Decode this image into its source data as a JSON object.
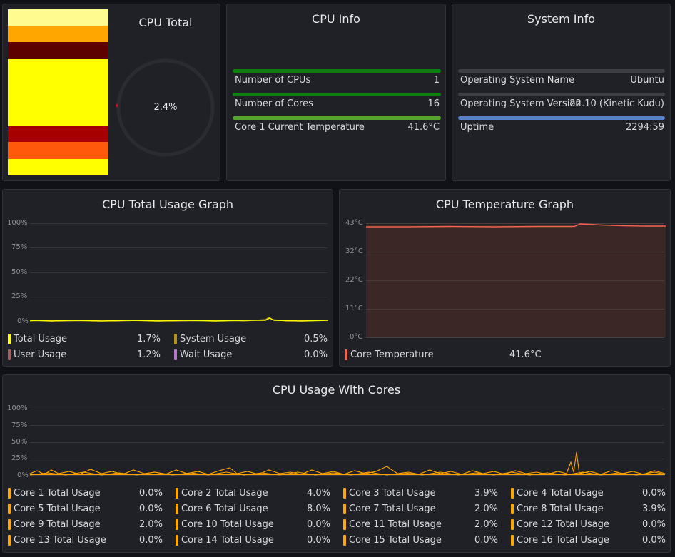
{
  "cpu_total": {
    "title": "CPU Total",
    "value": "2.4%",
    "stack_colors": [
      "#fffb8f",
      "#ffa600",
      "#5c0000",
      "#ffff00",
      "#a70000",
      "#ff5a0c",
      "#ffff00"
    ]
  },
  "cpu_info": {
    "title": "CPU Info",
    "rows": [
      {
        "label": "Number of CPUs",
        "value": "1",
        "color": "#0e7f0e",
        "fill": 1.0
      },
      {
        "label": "Number of Cores",
        "value": "16",
        "color": "#0e7f0e",
        "fill": 1.0
      },
      {
        "label": "Core 1 Current Temperature",
        "value": "41.6°C",
        "color": "#56a32e",
        "fill": 1.0
      }
    ]
  },
  "system_info": {
    "title": "System Info",
    "rows": [
      {
        "label": "Operating System Name",
        "value": "Ubuntu",
        "color": "#3d3f44",
        "fill": 1.0
      },
      {
        "label": "Operating System Version",
        "value": "22.10 (Kinetic Kudu)",
        "color": "#3d3f44",
        "fill": 1.0
      },
      {
        "label": "Uptime",
        "value": "2294:59",
        "color": "#5680c7",
        "fill": 1.0
      }
    ]
  },
  "usage_graph": {
    "title": "CPU Total Usage Graph",
    "yticks": [
      "100%",
      "75%",
      "50%",
      "25%",
      "0%"
    ],
    "legend": [
      {
        "label": "Total Usage",
        "value": "1.7%",
        "color": "#ffff00"
      },
      {
        "label": "System Usage",
        "value": "0.5%",
        "color": "#b59323"
      },
      {
        "label": "User Usage",
        "value": "1.2%",
        "color": "#a5615f"
      },
      {
        "label": "Wait Usage",
        "value": "0.0%",
        "color": "#b27ac9"
      }
    ]
  },
  "temp_graph": {
    "title": "CPU Temperature Graph",
    "yticks": [
      "43°C",
      "32°C",
      "22°C",
      "11°C",
      "0°C"
    ],
    "legend": [
      {
        "label": "Core Temperature",
        "value": "41.6°C",
        "color": "#f2644d"
      }
    ]
  },
  "cores_graph": {
    "title": "CPU Usage With Cores",
    "yticks": [
      "100%",
      "75%",
      "50%",
      "25%",
      "0%"
    ],
    "legend": [
      {
        "label": "Core 1 Total Usage",
        "value": "0.0%"
      },
      {
        "label": "Core 2 Total Usage",
        "value": "4.0%"
      },
      {
        "label": "Core 3 Total Usage",
        "value": "3.9%"
      },
      {
        "label": "Core 4 Total Usage",
        "value": "0.0%"
      },
      {
        "label": "Core 5 Total Usage",
        "value": "0.0%"
      },
      {
        "label": "Core 6 Total Usage",
        "value": "8.0%"
      },
      {
        "label": "Core 7 Total Usage",
        "value": "2.0%"
      },
      {
        "label": "Core 8 Total Usage",
        "value": "3.9%"
      },
      {
        "label": "Core 9 Total Usage",
        "value": "2.0%"
      },
      {
        "label": "Core 10 Total Usage",
        "value": "0.0%"
      },
      {
        "label": "Core 11 Total Usage",
        "value": "2.0%"
      },
      {
        "label": "Core 12 Total Usage",
        "value": "0.0%"
      },
      {
        "label": "Core 13 Total Usage",
        "value": "0.0%"
      },
      {
        "label": "Core 14 Total Usage",
        "value": "0.0%"
      },
      {
        "label": "Core 15 Total Usage",
        "value": "0.0%"
      },
      {
        "label": "Core 16 Total Usage",
        "value": "0.0%"
      }
    ],
    "legend_color": "#ffa600"
  }
}
